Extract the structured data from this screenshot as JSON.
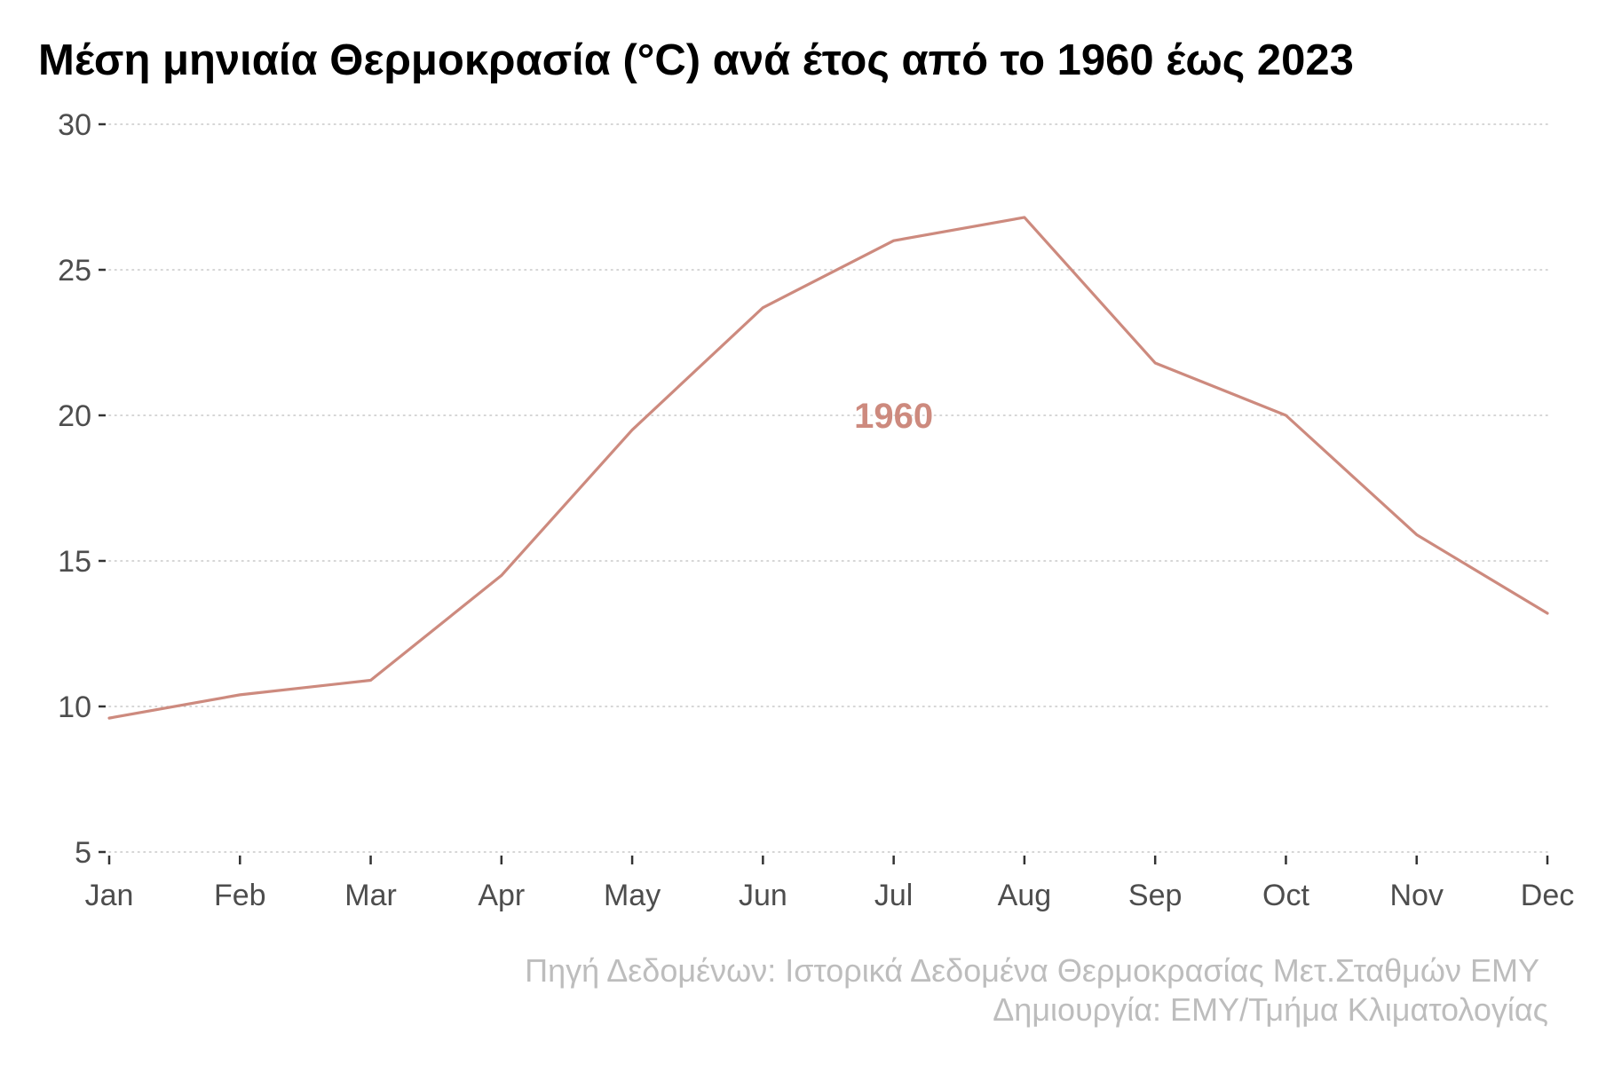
{
  "chart_data": {
    "type": "line",
    "title": "Μέση μηνιαία Θερμοκρασία (°C) ανά έτος από το 1960 έως 2023",
    "xlabel": "",
    "ylabel": "",
    "categories": [
      "Jan",
      "Feb",
      "Mar",
      "Apr",
      "May",
      "Jun",
      "Jul",
      "Aug",
      "Sep",
      "Oct",
      "Nov",
      "Dec"
    ],
    "ylim": [
      5,
      30
    ],
    "yticks": [
      5,
      10,
      15,
      20,
      25,
      30
    ],
    "grid": "horizontal dotted",
    "legend": "none",
    "series": [
      {
        "name": "1960",
        "color": "#cd8a7e",
        "values": [
          9.6,
          10.4,
          10.9,
          14.5,
          19.5,
          23.7,
          26.0,
          26.8,
          21.8,
          20.0,
          15.9,
          13.2
        ]
      }
    ],
    "annotations": [
      {
        "text": "1960",
        "x": "Jul",
        "y": 20.0,
        "color": "#cd8a7e"
      }
    ]
  },
  "caption": {
    "line1": "Πηγή Δεδομένων: Ιστορικά Δεδομένα Θερμοκρασίας Μετ.Σταθμών ΕΜΥ",
    "line2": "Δημιουργία: ΕΜΥ/Τμήμα Κλιματολογίας"
  }
}
